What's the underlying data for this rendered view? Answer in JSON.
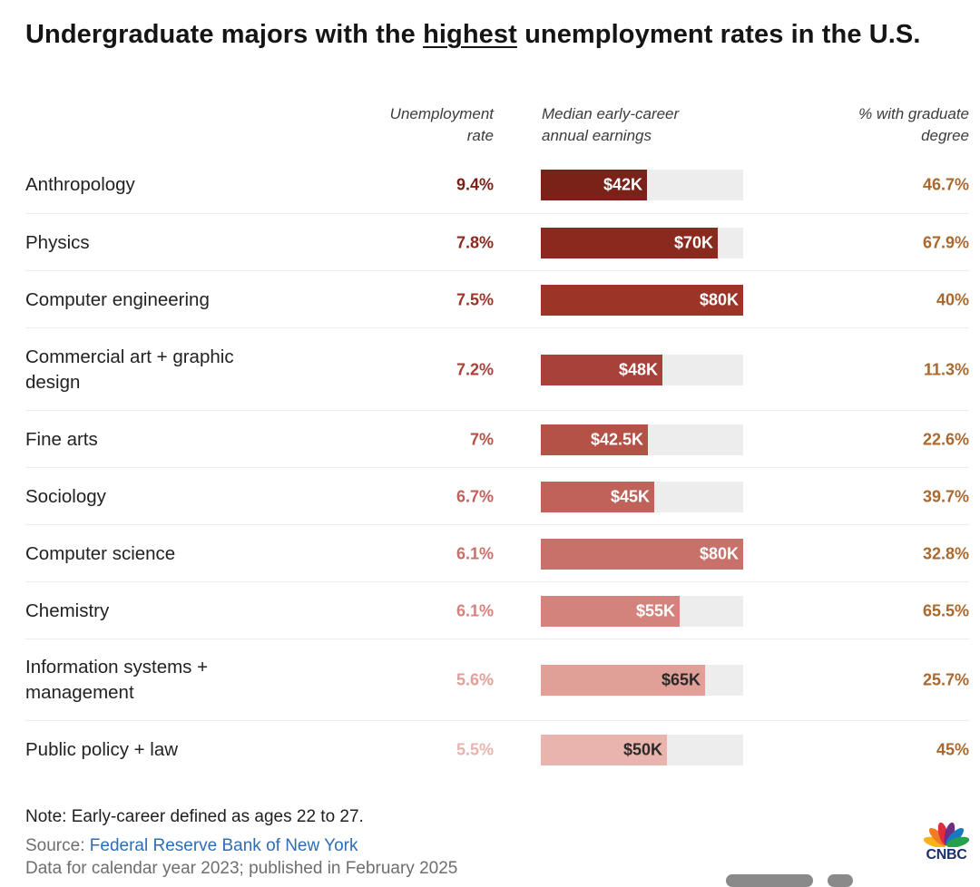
{
  "title": {
    "before": "Undergraduate majors with the ",
    "emphasis": "highest",
    "after": " unemployment rates in the U.S."
  },
  "headers": {
    "rate": "Unemployment\nrate",
    "earnings": "Median early-career\nannual earnings",
    "grad": "% with graduate\ndegree"
  },
  "chart_data": {
    "type": "table",
    "columns": [
      "Unemployment rate",
      "Median early-career annual earnings",
      "% with graduate degree"
    ],
    "earnings_axis_max": 80000,
    "rows": [
      {
        "major": "Anthropology",
        "unemployment_rate": "9.4%",
        "rate_value": 9.4,
        "earnings_label": "$42K",
        "earnings": 42000,
        "grad_degree": "46.7%"
      },
      {
        "major": "Physics",
        "unemployment_rate": "7.8%",
        "rate_value": 7.8,
        "earnings_label": "$70K",
        "earnings": 70000,
        "grad_degree": "67.9%"
      },
      {
        "major": "Computer engineering",
        "unemployment_rate": "7.5%",
        "rate_value": 7.5,
        "earnings_label": "$80K",
        "earnings": 80000,
        "grad_degree": "40%"
      },
      {
        "major": "Commercial art + graphic\ndesign",
        "unemployment_rate": "7.2%",
        "rate_value": 7.2,
        "earnings_label": "$48K",
        "earnings": 48000,
        "grad_degree": "11.3%"
      },
      {
        "major": "Fine arts",
        "unemployment_rate": "7%",
        "rate_value": 7.0,
        "earnings_label": "$42.5K",
        "earnings": 42500,
        "grad_degree": "22.6%"
      },
      {
        "major": "Sociology",
        "unemployment_rate": "6.7%",
        "rate_value": 6.7,
        "earnings_label": "$45K",
        "earnings": 45000,
        "grad_degree": "39.7%"
      },
      {
        "major": "Computer science",
        "unemployment_rate": "6.1%",
        "rate_value": 6.1,
        "earnings_label": "$80K",
        "earnings": 80000,
        "grad_degree": "32.8%"
      },
      {
        "major": "Chemistry",
        "unemployment_rate": "6.1%",
        "rate_value": 6.1,
        "earnings_label": "$55K",
        "earnings": 55000,
        "grad_degree": "65.5%"
      },
      {
        "major": "Information systems +\nmanagement",
        "unemployment_rate": "5.6%",
        "rate_value": 5.6,
        "earnings_label": "$65K",
        "earnings": 65000,
        "grad_degree": "25.7%"
      },
      {
        "major": "Public policy + law",
        "unemployment_rate": "5.5%",
        "rate_value": 5.5,
        "earnings_label": "$50K",
        "earnings": 50000,
        "grad_degree": "45%"
      }
    ],
    "row_colors": [
      "#7a2218",
      "#8a2a1e",
      "#9c3428",
      "#a8413a",
      "#b55247",
      "#c0625a",
      "#c8716a",
      "#d4837c",
      "#e09f97",
      "#e9b4ae"
    ],
    "earnings_label_colors": [
      "#ffffff",
      "#ffffff",
      "#ffffff",
      "#ffffff",
      "#ffffff",
      "#ffffff",
      "#ffffff",
      "#ffffff",
      "#2a2a2a",
      "#2a2a2a"
    ]
  },
  "footer": {
    "note": "Note: Early-career defined as ages 22 to 27.",
    "source_prefix": "Source: ",
    "source_link": "Federal Reserve Bank of New York",
    "dates": "Data for calendar year 2023; published in February 2025"
  },
  "logo": {
    "text": "CNBC",
    "icon": "peacock-icon",
    "feather_colors": [
      "#f5b21b",
      "#ef7b22",
      "#e22b3d",
      "#6b2f86",
      "#1a78c2",
      "#23a14b"
    ]
  }
}
